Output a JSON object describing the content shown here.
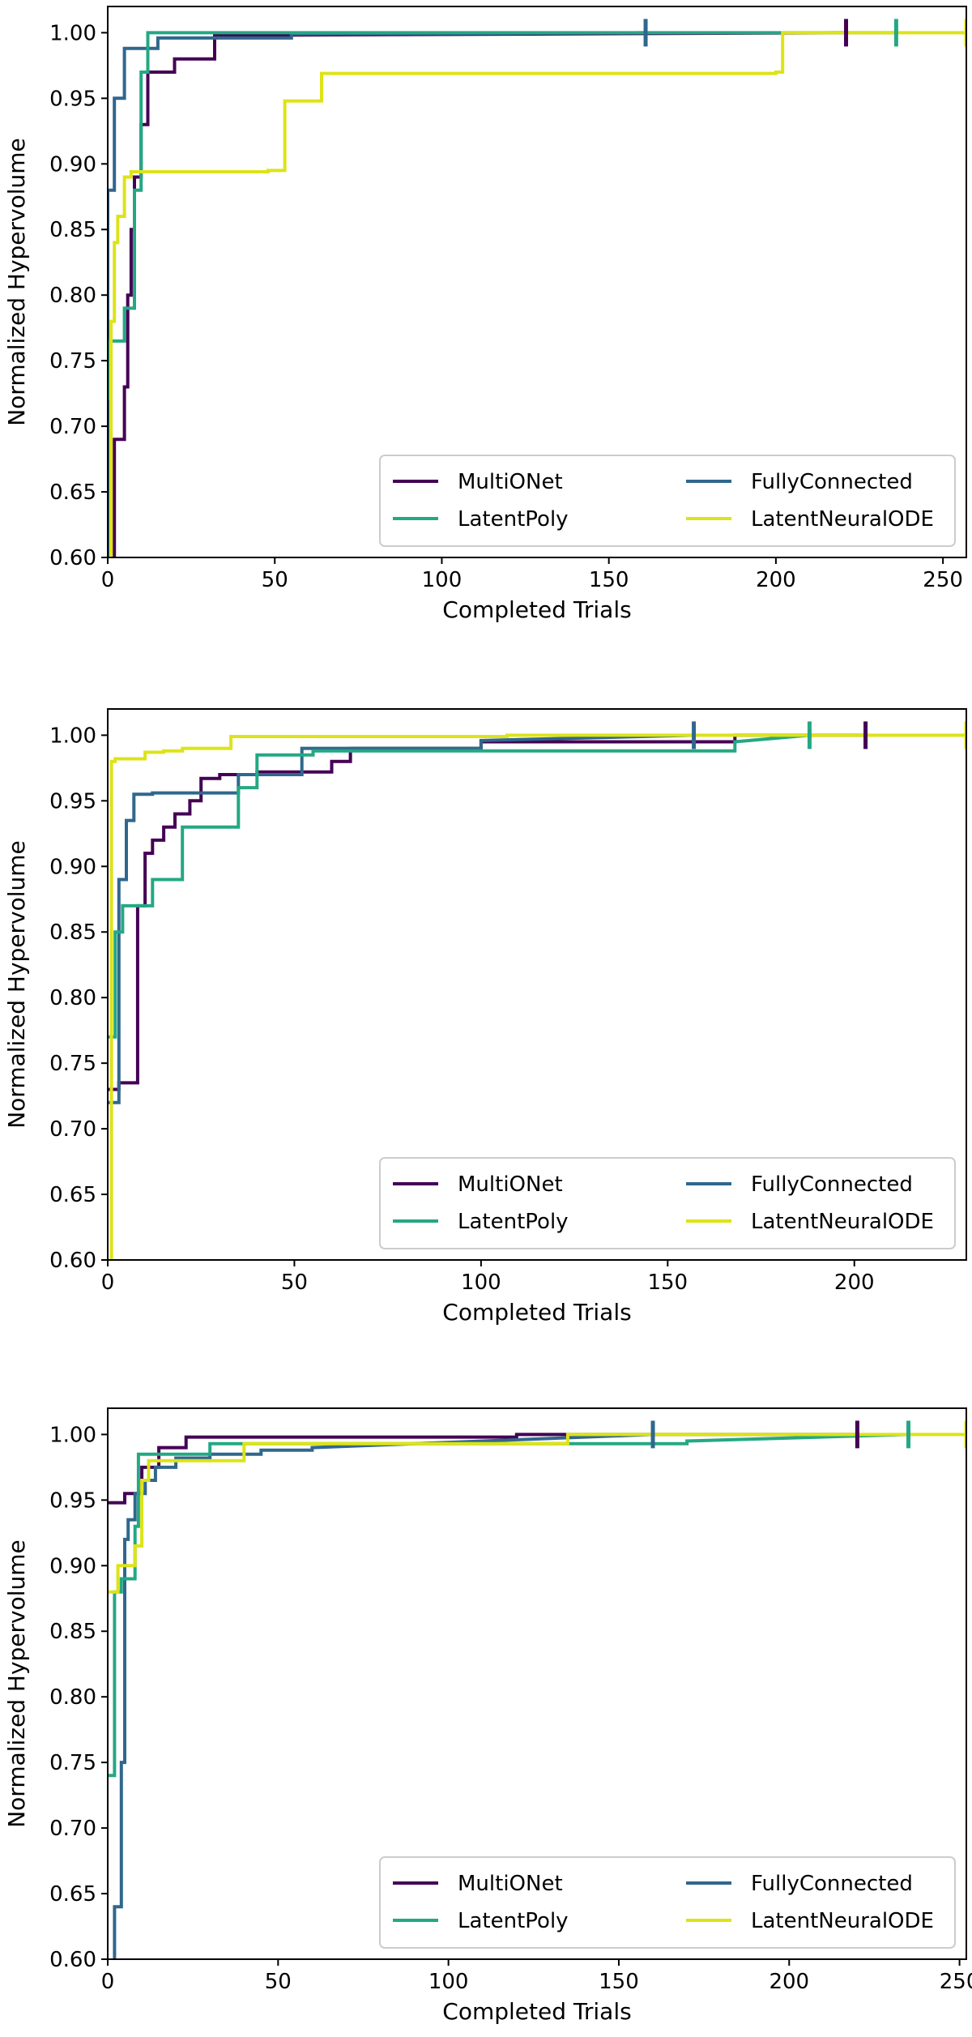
{
  "colors": {
    "MultiONet": "#440154",
    "FullyConnected": "#30678d",
    "LatentPoly": "#24a884",
    "LatentNeuralODE": "#dde318",
    "axis": "#000000",
    "legend_border": "#cccccc"
  },
  "chart_data": [
    {
      "type": "line",
      "xlabel": "Completed Trials",
      "ylabel": "Normalized Hypervolume",
      "xlim": [
        0,
        257
      ],
      "ylim": [
        0.6,
        1.02
      ],
      "xticks": [
        0,
        50,
        100,
        150,
        200,
        250
      ],
      "xtick_labels": [
        "0",
        "50",
        "100",
        "150",
        "200",
        "250"
      ],
      "yticks": [
        0.6,
        0.65,
        0.7,
        0.75,
        0.8,
        0.85,
        0.9,
        0.95,
        1.0
      ],
      "ytick_labels": [
        "0.60",
        "0.65",
        "0.70",
        "0.75",
        "0.80",
        "0.85",
        "0.90",
        "0.95",
        "1.00"
      ],
      "grid": false,
      "legend_position": "lower-right",
      "series": [
        {
          "name": "MultiONet",
          "end_marker": 221,
          "x": [
            2,
            2,
            4,
            4,
            5,
            5,
            6,
            6,
            7,
            7,
            8,
            8,
            10,
            10,
            12,
            12,
            14,
            14,
            20,
            20,
            25,
            25,
            32,
            32,
            221
          ],
          "y": [
            0.6,
            0.69,
            0.69,
            0.69,
            0.69,
            0.73,
            0.73,
            0.8,
            0.8,
            0.85,
            0.85,
            0.89,
            0.89,
            0.93,
            0.93,
            0.97,
            0.97,
            0.97,
            0.97,
            0.98,
            0.98,
            0.98,
            0.98,
            0.998,
            1.0
          ]
        },
        {
          "name": "FullyConnected",
          "end_marker": 161,
          "x": [
            0,
            0,
            2,
            2,
            5,
            5,
            15,
            15,
            55,
            55,
            120,
            161
          ],
          "y": [
            0.6,
            0.88,
            0.88,
            0.95,
            0.95,
            0.988,
            0.988,
            0.996,
            0.996,
            0.999,
            0.9995,
            1.0
          ]
        },
        {
          "name": "LatentPoly",
          "end_marker": 236,
          "x": [
            0,
            0,
            2,
            2,
            5,
            5,
            8,
            8,
            10,
            10,
            12,
            12,
            236
          ],
          "y": [
            0.72,
            0.765,
            0.765,
            0.765,
            0.765,
            0.79,
            0.79,
            0.88,
            0.88,
            0.97,
            0.97,
            1.0,
            1.0
          ]
        },
        {
          "name": "LatentNeuralODE",
          "end_marker": 257,
          "x": [
            1,
            1,
            2,
            2,
            3,
            3,
            5,
            5,
            7,
            7,
            48,
            48,
            53,
            53,
            64,
            64,
            200,
            200,
            202,
            202,
            257
          ],
          "y": [
            0.6,
            0.78,
            0.78,
            0.84,
            0.84,
            0.86,
            0.86,
            0.89,
            0.89,
            0.894,
            0.894,
            0.895,
            0.895,
            0.948,
            0.948,
            0.969,
            0.969,
            0.97,
            0.97,
            1.0,
            1.0
          ]
        }
      ]
    },
    {
      "type": "line",
      "xlabel": "Completed Trials",
      "ylabel": "Normalized Hypervolume",
      "xlim": [
        0,
        230
      ],
      "ylim": [
        0.6,
        1.02
      ],
      "xticks": [
        0,
        50,
        100,
        150,
        200
      ],
      "xtick_labels": [
        "0",
        "50",
        "100",
        "150",
        "200"
      ],
      "yticks": [
        0.6,
        0.65,
        0.7,
        0.75,
        0.8,
        0.85,
        0.9,
        0.95,
        1.0
      ],
      "ytick_labels": [
        "0.60",
        "0.65",
        "0.70",
        "0.75",
        "0.80",
        "0.85",
        "0.90",
        "0.95",
        "1.00"
      ],
      "grid": false,
      "legend_position": "lower-right",
      "series": [
        {
          "name": "MultiONet",
          "end_marker": 203,
          "x": [
            0,
            0,
            3,
            3,
            8,
            8,
            10,
            10,
            12,
            12,
            15,
            15,
            18,
            18,
            22,
            22,
            25,
            25,
            30,
            30,
            40,
            40,
            60,
            60,
            65,
            65,
            100,
            100,
            168,
            168,
            203
          ],
          "y": [
            0.73,
            0.73,
            0.73,
            0.735,
            0.735,
            0.87,
            0.87,
            0.91,
            0.91,
            0.92,
            0.92,
            0.93,
            0.93,
            0.94,
            0.94,
            0.95,
            0.95,
            0.967,
            0.967,
            0.97,
            0.97,
            0.972,
            0.972,
            0.98,
            0.98,
            0.99,
            0.99,
            0.995,
            0.995,
            1.0,
            1.0
          ]
        },
        {
          "name": "FullyConnected",
          "end_marker": 157,
          "x": [
            0,
            0,
            3,
            3,
            5,
            5,
            7,
            7,
            12,
            12,
            35,
            35,
            52,
            52,
            100,
            100,
            157
          ],
          "y": [
            0.72,
            0.72,
            0.72,
            0.89,
            0.89,
            0.935,
            0.935,
            0.955,
            0.955,
            0.956,
            0.956,
            0.97,
            0.97,
            0.99,
            0.99,
            0.996,
            1.0
          ]
        },
        {
          "name": "LatentPoly",
          "end_marker": 188,
          "x": [
            0,
            0,
            2,
            2,
            4,
            4,
            8,
            8,
            12,
            12,
            19,
            19,
            20,
            20,
            35,
            35,
            40,
            40,
            55,
            55,
            168,
            168,
            188
          ],
          "y": [
            0.77,
            0.77,
            0.77,
            0.85,
            0.85,
            0.87,
            0.87,
            0.87,
            0.87,
            0.89,
            0.89,
            0.89,
            0.89,
            0.93,
            0.93,
            0.96,
            0.96,
            0.985,
            0.985,
            0.988,
            0.988,
            0.995,
            1.0
          ]
        },
        {
          "name": "LatentNeuralODE",
          "end_marker": 230,
          "x": [
            1,
            1,
            2,
            2,
            10,
            10,
            15,
            15,
            20,
            20,
            33,
            33,
            107,
            107,
            230
          ],
          "y": [
            0.6,
            0.98,
            0.98,
            0.982,
            0.982,
            0.987,
            0.987,
            0.988,
            0.988,
            0.99,
            0.99,
            0.999,
            0.999,
            1.0,
            1.0
          ]
        }
      ]
    },
    {
      "type": "line",
      "xlabel": "Completed Trials",
      "ylabel": "Normalized Hypervolume",
      "xlim": [
        0,
        252
      ],
      "ylim": [
        0.6,
        1.02
      ],
      "xticks": [
        0,
        50,
        100,
        150,
        200,
        250
      ],
      "xtick_labels": [
        "0",
        "50",
        "100",
        "150",
        "200",
        "250"
      ],
      "yticks": [
        0.6,
        0.65,
        0.7,
        0.75,
        0.8,
        0.85,
        0.9,
        0.95,
        1.0
      ],
      "ytick_labels": [
        "0.60",
        "0.65",
        "0.70",
        "0.75",
        "0.80",
        "0.85",
        "0.90",
        "0.95",
        "1.00"
      ],
      "grid": false,
      "legend_position": "lower-right",
      "series": [
        {
          "name": "MultiONet",
          "end_marker": 220,
          "x": [
            0,
            5,
            5,
            10,
            10,
            15,
            15,
            23,
            23,
            120,
            120,
            220
          ],
          "y": [
            0.948,
            0.948,
            0.955,
            0.955,
            0.975,
            0.975,
            0.99,
            0.99,
            0.998,
            0.998,
            1.0,
            1.0
          ]
        },
        {
          "name": "FullyConnected",
          "end_marker": 160,
          "x": [
            2,
            2,
            4,
            4,
            5,
            5,
            6,
            6,
            8,
            8,
            11,
            11,
            14,
            14,
            20,
            20,
            30,
            30,
            45,
            45,
            60,
            60,
            160
          ],
          "y": [
            0.6,
            0.64,
            0.64,
            0.75,
            0.75,
            0.92,
            0.92,
            0.935,
            0.935,
            0.955,
            0.955,
            0.965,
            0.965,
            0.975,
            0.975,
            0.982,
            0.982,
            0.985,
            0.985,
            0.988,
            0.988,
            0.99,
            1.0
          ]
        },
        {
          "name": "LatentPoly",
          "end_marker": 235,
          "x": [
            0,
            0,
            2,
            2,
            4,
            4,
            8,
            8,
            9,
            9,
            18,
            18,
            30,
            30,
            170,
            170,
            235
          ],
          "y": [
            0.74,
            0.74,
            0.74,
            0.88,
            0.88,
            0.89,
            0.89,
            0.93,
            0.93,
            0.985,
            0.985,
            0.985,
            0.985,
            0.993,
            0.993,
            0.995,
            1.0
          ]
        },
        {
          "name": "LatentNeuralODE",
          "end_marker": 252,
          "x": [
            0,
            0,
            3,
            3,
            8,
            8,
            10,
            10,
            12,
            12,
            40,
            40,
            135,
            135,
            252
          ],
          "y": [
            0.88,
            0.88,
            0.88,
            0.9,
            0.9,
            0.915,
            0.915,
            0.965,
            0.965,
            0.98,
            0.98,
            0.993,
            0.993,
            1.0,
            1.0
          ]
        }
      ]
    }
  ]
}
